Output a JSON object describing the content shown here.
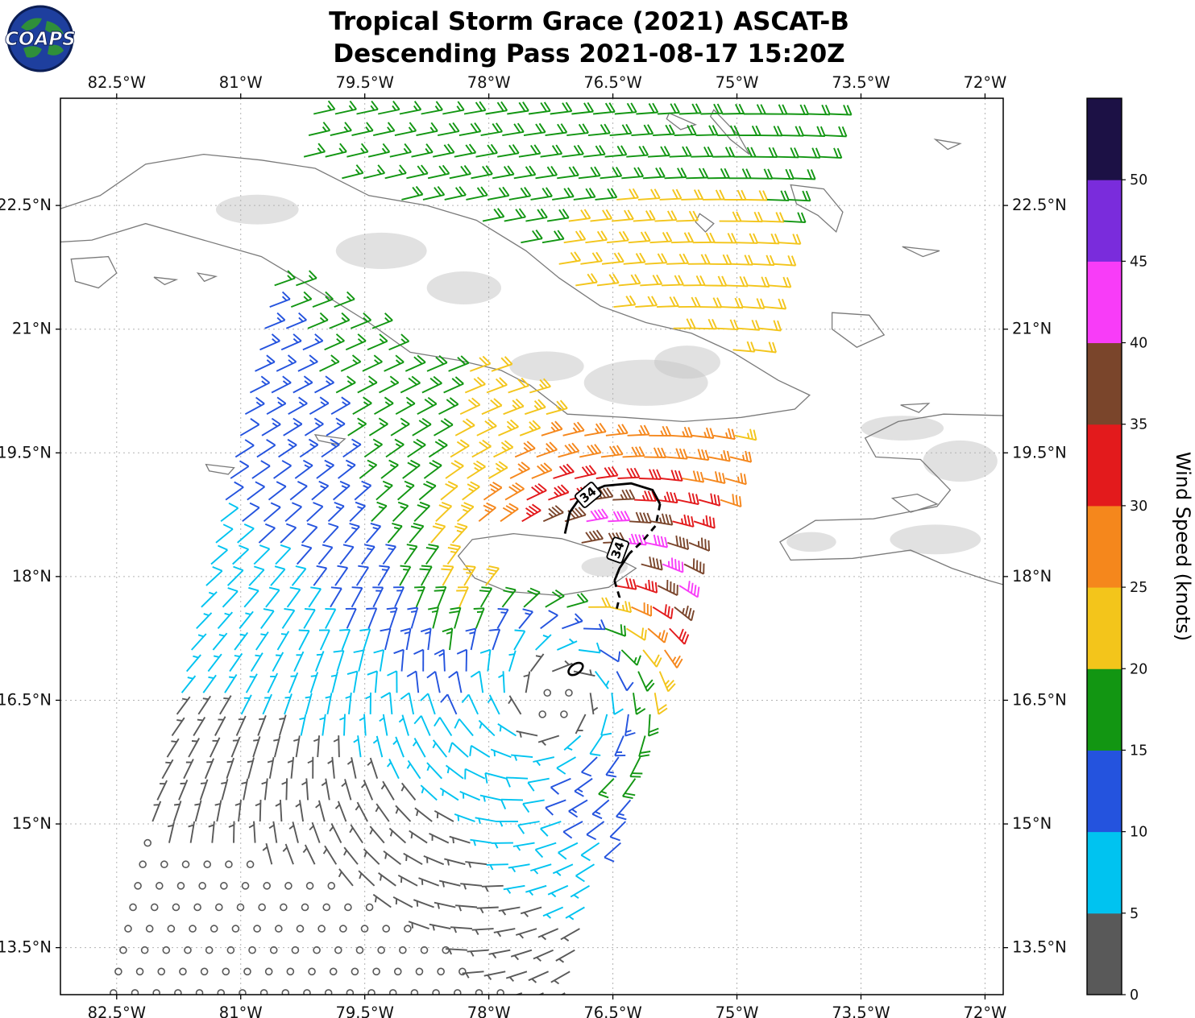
{
  "header": {
    "title_line1": "Tropical Storm Grace (2021) ASCAT-B",
    "title_line2": "Descending Pass 2021-08-17 15:20Z",
    "logo_text": "COAPS"
  },
  "chart_data": {
    "type": "wind_barb_map",
    "title": "Tropical Storm Grace (2021) ASCAT-B Descending Pass 2021-08-17 15:20Z",
    "extent": {
      "lon_min": -83.18,
      "lon_max": -71.78,
      "lat_min": 12.93,
      "lat_max": 23.8
    },
    "x_ticks": [
      {
        "v": -82.5,
        "label": "82.5°W"
      },
      {
        "v": -81.0,
        "label": "81°W"
      },
      {
        "v": -79.5,
        "label": "79.5°W"
      },
      {
        "v": -78.0,
        "label": "78°W"
      },
      {
        "v": -76.5,
        "label": "76.5°W"
      },
      {
        "v": -75.0,
        "label": "75°W"
      },
      {
        "v": -73.5,
        "label": "73.5°W"
      },
      {
        "v": -72.0,
        "label": "72°W"
      }
    ],
    "y_ticks": [
      {
        "v": 22.5,
        "label": "22.5°N"
      },
      {
        "v": 21.0,
        "label": "21°N"
      },
      {
        "v": 19.5,
        "label": "19.5°N"
      },
      {
        "v": 18.0,
        "label": "18°N"
      },
      {
        "v": 16.5,
        "label": "16.5°N"
      },
      {
        "v": 15.0,
        "label": "15°N"
      },
      {
        "v": 13.5,
        "label": "13.5°N"
      }
    ],
    "colorbar": {
      "label": "Wind Speed (knots)",
      "levels": [
        0,
        5,
        10,
        15,
        20,
        25,
        30,
        35,
        40,
        45,
        50,
        55
      ],
      "tick_labels": [
        "0",
        "5",
        "10",
        "15",
        "20",
        "25",
        "30",
        "35",
        "40",
        "45",
        "50"
      ],
      "colors": [
        "#595959",
        "#00c3f0",
        "#2453de",
        "#129612",
        "#f3c51b",
        "#f5871c",
        "#e31a1c",
        "#7a452b",
        "#f83cf8",
        "#7a2cdc",
        "#1c1145"
      ]
    },
    "wind_field": {
      "center": {
        "lon": -77.0,
        "lat": 17.0
      },
      "vmax_kt": 25,
      "rmax_deg": 1.6,
      "decay_exp": 1.15,
      "asymmetry": 0.5,
      "asymmetry_dir_deg": 45,
      "inflow_deg": 18,
      "background": {
        "u_base": -2.5,
        "u_extra": -9.5,
        "lat0": 14.5,
        "lat_span": 8
      }
    },
    "swath": {
      "grid_deg": 0.26,
      "lat_min": 12.95,
      "lat_max": 23.8,
      "left": {
        "lon0": -82.55,
        "lat_ref": 12.9,
        "slope": 0.227
      },
      "right": {
        "lon0": -73.75,
        "lat_ref": 23.9,
        "slope": 0.29
      }
    },
    "calm_threshold_kt": 2.5,
    "barb_style": {
      "length": 27,
      "feather": 13,
      "half": 7,
      "spacing": 4.6,
      "angle_deg": -115,
      "width": 1.9,
      "calm_radius": 4
    },
    "land": [
      {
        "name": "cuba",
        "pts": [
          [
            -83.3,
            22.42
          ],
          [
            -82.7,
            22.62
          ],
          [
            -82.15,
            23.0
          ],
          [
            -81.45,
            23.12
          ],
          [
            -80.75,
            23.05
          ],
          [
            -80.1,
            22.95
          ],
          [
            -79.45,
            22.62
          ],
          [
            -78.75,
            22.5
          ],
          [
            -78.15,
            22.32
          ],
          [
            -77.55,
            21.95
          ],
          [
            -77.15,
            21.62
          ],
          [
            -76.65,
            21.28
          ],
          [
            -76.1,
            21.08
          ],
          [
            -75.55,
            20.95
          ],
          [
            -75.05,
            20.72
          ],
          [
            -74.5,
            20.38
          ],
          [
            -74.12,
            20.2
          ],
          [
            -74.3,
            20.03
          ],
          [
            -74.95,
            19.93
          ],
          [
            -75.65,
            19.88
          ],
          [
            -76.35,
            19.93
          ],
          [
            -77.05,
            19.97
          ],
          [
            -77.5,
            20.32
          ],
          [
            -77.85,
            20.5
          ],
          [
            -78.35,
            20.62
          ],
          [
            -78.95,
            20.72
          ],
          [
            -79.45,
            21.08
          ],
          [
            -80.25,
            21.58
          ],
          [
            -80.75,
            21.88
          ],
          [
            -81.45,
            22.08
          ],
          [
            -82.15,
            22.28
          ],
          [
            -82.8,
            22.08
          ],
          [
            -83.3,
            22.05
          ]
        ]
      },
      {
        "name": "jamaica",
        "pts": [
          [
            -78.37,
            18.25
          ],
          [
            -78.2,
            18.45
          ],
          [
            -77.7,
            18.52
          ],
          [
            -77.12,
            18.46
          ],
          [
            -76.6,
            18.3
          ],
          [
            -76.22,
            18.1
          ],
          [
            -76.55,
            17.87
          ],
          [
            -77.15,
            17.77
          ],
          [
            -77.78,
            17.82
          ],
          [
            -78.17,
            17.98
          ]
        ]
      },
      {
        "name": "hispaniola",
        "pts": [
          [
            -71.7,
            19.95
          ],
          [
            -72.5,
            19.97
          ],
          [
            -73.05,
            19.88
          ],
          [
            -73.45,
            19.68
          ],
          [
            -73.32,
            19.45
          ],
          [
            -72.78,
            19.42
          ],
          [
            -72.42,
            19.05
          ],
          [
            -72.58,
            18.85
          ],
          [
            -73.35,
            18.7
          ],
          [
            -74.05,
            18.68
          ],
          [
            -74.48,
            18.42
          ],
          [
            -74.35,
            18.2
          ],
          [
            -73.6,
            18.22
          ],
          [
            -72.9,
            18.32
          ],
          [
            -72.4,
            18.1
          ],
          [
            -71.95,
            17.95
          ],
          [
            -71.7,
            17.88
          ]
        ]
      },
      {
        "name": "gonave",
        "pts": [
          [
            -73.12,
            18.95
          ],
          [
            -72.82,
            19.0
          ],
          [
            -72.58,
            18.88
          ],
          [
            -72.9,
            18.78
          ]
        ]
      },
      {
        "name": "tortuga",
        "pts": [
          [
            -73.02,
            20.08
          ],
          [
            -72.68,
            20.1
          ],
          [
            -72.8,
            19.99
          ]
        ]
      },
      {
        "name": "great-inagua",
        "pts": [
          [
            -73.85,
            21.2
          ],
          [
            -73.4,
            21.17
          ],
          [
            -73.22,
            20.93
          ],
          [
            -73.55,
            20.78
          ],
          [
            -73.85,
            21.0
          ]
        ]
      },
      {
        "name": "crooked-acklins",
        "pts": [
          [
            -74.35,
            22.75
          ],
          [
            -73.95,
            22.7
          ],
          [
            -73.72,
            22.42
          ],
          [
            -73.8,
            22.18
          ],
          [
            -74.02,
            22.38
          ],
          [
            -74.28,
            22.52
          ]
        ]
      },
      {
        "name": "long-island",
        "pts": [
          [
            -75.28,
            23.66
          ],
          [
            -74.98,
            23.35
          ],
          [
            -74.85,
            23.12
          ],
          [
            -75.08,
            23.3
          ],
          [
            -75.32,
            23.58
          ]
        ]
      },
      {
        "name": "mayaguana",
        "pts": [
          [
            -73.0,
            22.0
          ],
          [
            -72.55,
            21.95
          ],
          [
            -72.75,
            21.88
          ]
        ]
      },
      {
        "name": "plana-cays",
        "pts": [
          [
            -72.6,
            23.3
          ],
          [
            -72.3,
            23.25
          ],
          [
            -72.45,
            23.18
          ]
        ]
      },
      {
        "name": "isla-juventud",
        "pts": [
          [
            -83.05,
            21.85
          ],
          [
            -82.6,
            21.88
          ],
          [
            -82.5,
            21.68
          ],
          [
            -82.72,
            21.5
          ],
          [
            -83.0,
            21.58
          ]
        ]
      },
      {
        "name": "grand-cayman",
        "pts": [
          [
            -81.42,
            19.36
          ],
          [
            -81.08,
            19.32
          ],
          [
            -81.15,
            19.24
          ],
          [
            -81.38,
            19.28
          ]
        ]
      },
      {
        "name": "little-cayman",
        "pts": [
          [
            -80.1,
            19.72
          ],
          [
            -79.74,
            19.67
          ],
          [
            -79.82,
            19.6
          ],
          [
            -80.06,
            19.65
          ]
        ]
      },
      {
        "name": "exuma-cays",
        "pts": [
          [
            -75.82,
            23.62
          ],
          [
            -75.5,
            23.48
          ],
          [
            -75.68,
            23.42
          ],
          [
            -75.85,
            23.55
          ]
        ]
      },
      {
        "name": "ragged-cays",
        "pts": [
          [
            -75.45,
            22.4
          ],
          [
            -75.28,
            22.28
          ],
          [
            -75.38,
            22.18
          ],
          [
            -75.5,
            22.3
          ]
        ]
      },
      {
        "name": "canarreos-a",
        "pts": [
          [
            -82.05,
            21.63
          ],
          [
            -81.78,
            21.6
          ],
          [
            -81.92,
            21.54
          ]
        ]
      },
      {
        "name": "canarreos-b",
        "pts": [
          [
            -81.52,
            21.68
          ],
          [
            -81.3,
            21.64
          ],
          [
            -81.44,
            21.58
          ]
        ]
      }
    ],
    "terrain_shading": [
      [
        -76.1,
        20.35,
        0.75,
        0.28
      ],
      [
        -77.3,
        20.55,
        0.45,
        0.18
      ],
      [
        -75.6,
        20.6,
        0.4,
        0.2
      ],
      [
        -79.3,
        21.95,
        0.55,
        0.22
      ],
      [
        -78.3,
        21.5,
        0.45,
        0.2
      ],
      [
        -80.8,
        22.45,
        0.5,
        0.18
      ],
      [
        -72.3,
        19.4,
        0.45,
        0.25
      ],
      [
        -72.6,
        18.45,
        0.55,
        0.18
      ],
      [
        -74.1,
        18.42,
        0.3,
        0.12
      ],
      [
        -73.0,
        19.8,
        0.5,
        0.15
      ],
      [
        -76.6,
        18.12,
        0.28,
        0.12
      ]
    ],
    "annotations": {
      "wind_radius": {
        "label": "34",
        "segments": [
          {
            "dashed": false,
            "pts": [
              [
                -77.08,
                18.52
              ],
              [
                -77.02,
                18.78
              ],
              [
                -76.88,
                18.98
              ],
              [
                -76.6,
                19.1
              ],
              [
                -76.28,
                19.13
              ],
              [
                -76.02,
                19.05
              ],
              [
                -75.93,
                18.88
              ]
            ]
          },
          {
            "dashed": true,
            "pts": [
              [
                -75.93,
                18.88
              ],
              [
                -75.98,
                18.62
              ],
              [
                -76.15,
                18.42
              ],
              [
                -76.3,
                18.28
              ]
            ]
          },
          {
            "dashed": false,
            "pts": [
              [
                -76.3,
                18.28
              ],
              [
                -76.42,
                18.1
              ],
              [
                -76.48,
                17.95
              ]
            ]
          },
          {
            "dashed": true,
            "pts": [
              [
                -76.48,
                17.95
              ],
              [
                -76.42,
                17.75
              ],
              [
                -76.46,
                17.58
              ]
            ]
          }
        ],
        "labels": [
          {
            "lon": -76.8,
            "lat": 18.99,
            "rot": -40
          },
          {
            "lon": -76.44,
            "lat": 18.32,
            "rot": -70
          }
        ]
      },
      "center_marker": {
        "lon": -76.95,
        "lat": 16.88
      }
    }
  }
}
